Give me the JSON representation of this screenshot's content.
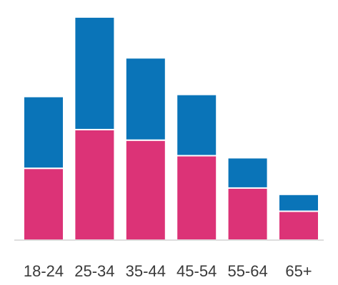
{
  "chart_data": {
    "type": "bar",
    "stacked": true,
    "categories": [
      "18-24",
      "25-34",
      "35-44",
      "45-54",
      "55-64",
      "65+"
    ],
    "series": [
      {
        "values": [
          100,
          155,
          140,
          118,
          72,
          39
        ]
      },
      {
        "values": [
          102,
          160,
          117,
          87,
          43,
          24
        ]
      }
    ],
    "colors": [
      "#dc3377",
      "#0a74b8"
    ],
    "ylim": [
      0,
      320
    ],
    "grid": false,
    "legend": "none",
    "title": "",
    "xlabel": "",
    "ylabel": ""
  }
}
